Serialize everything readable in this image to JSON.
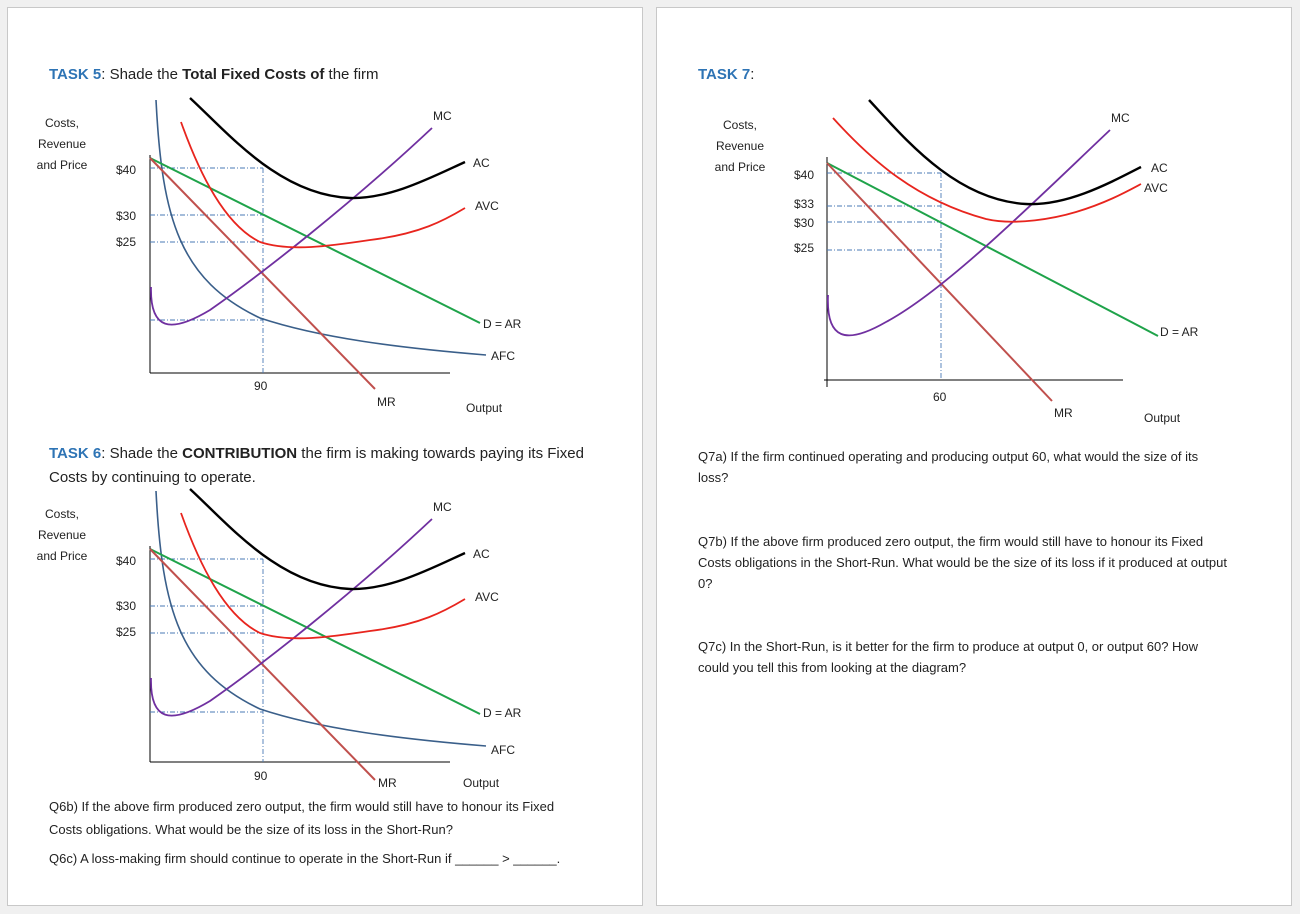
{
  "page_left": {
    "task5": {
      "prefix": "TASK 5",
      "t1": ": Shade the ",
      "b1": "Total Fixed Costs of",
      "t2": " the firm"
    },
    "task6": {
      "prefix": "TASK 6",
      "t1": ": Shade the ",
      "b1": "CONTRIBUTION",
      "t2": " the firm is making towards paying its Fixed",
      "line2": "Costs by continuing to operate."
    },
    "diagram": {
      "ylabel": [
        "Costs,",
        "Revenue",
        "and Price"
      ],
      "price_ticks": [
        "$40",
        "$30",
        "$25"
      ],
      "x_tick": "90",
      "curves": {
        "mc": "MC",
        "ac": "AC",
        "avc": "AVC",
        "d": "D = AR",
        "afc": "AFC",
        "mr": "MR"
      },
      "xlabel": "Output"
    },
    "q6b": {
      "line1": "Q6b) If the above firm produced zero output, the firm would still have to honour its Fixed",
      "line2": "Costs obligations. What would be the size of its loss in the Short-Run?"
    },
    "q6c": "Q6c) A loss-making firm should continue to operate in the Short-Run if ______ > ______."
  },
  "page_right": {
    "task7": {
      "prefix": "TASK 7",
      "t1": ":"
    },
    "diagram": {
      "ylabel": [
        "Costs,",
        "Revenue",
        "and Price"
      ],
      "price_ticks": [
        "$40",
        "$33",
        "$30",
        "$25"
      ],
      "x_tick": "60",
      "curves": {
        "mc": "MC",
        "ac": "AC",
        "avc": "AVC",
        "d": "D = AR",
        "mr": "MR"
      },
      "xlabel": "Output"
    },
    "q7a": {
      "line1": "Q7a) If the firm continued operating and producing output 60, what would the size of its",
      "line2": "loss?"
    },
    "q7b": {
      "line1": "Q7b) If the above firm produced zero output, the firm would still have to honour its Fixed",
      "line2": "Costs obligations in the Short-Run. What would be the size of its loss if it produced at output",
      "line3": "0?"
    },
    "q7c": {
      "line1": "Q7c) In the Short-Run, is it better for the firm to produce at output 0, or output 60? How",
      "line2": "could you tell this from looking at the diagram?"
    }
  },
  "colors": {
    "heading_accent": "#2e74b5",
    "ac_curve": "#000000",
    "avc_curve": "#e8251e",
    "mc_curve": "#7030a0",
    "demand_curve": "#1fa34a",
    "mr_curve": "#c0504d",
    "afc_curve": "#3a5f8a",
    "guide_lines": "#4a7ab5"
  }
}
